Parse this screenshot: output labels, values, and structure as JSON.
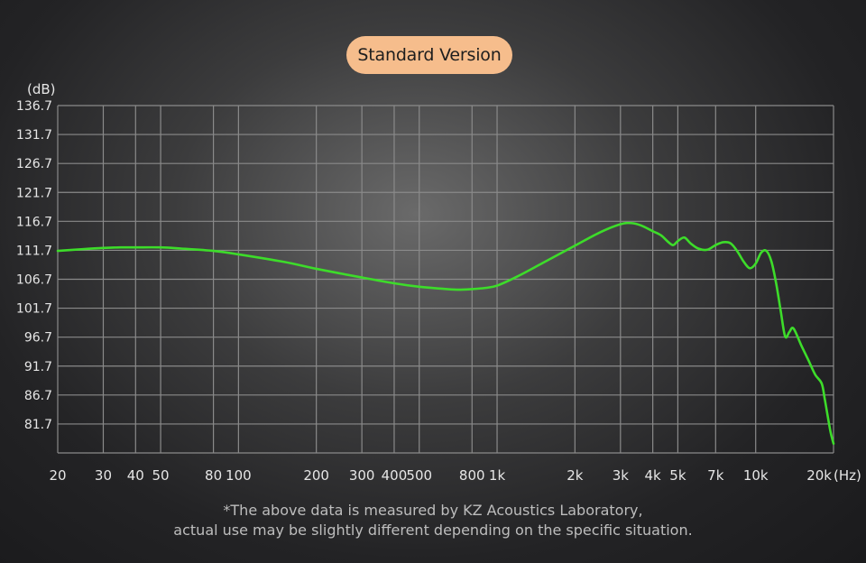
{
  "header": {
    "badge_label": "Standard Version"
  },
  "footnote": {
    "line1": "*The above data is measured by KZ Acoustics Laboratory,",
    "line2": "actual use may be slightly different depending on the specific situation."
  },
  "chart_data": {
    "type": "line",
    "title": "",
    "xlabel": "",
    "ylabel": "",
    "y_unit_label": "(dB)",
    "x_unit_label": "(Hz)",
    "x_scale": "log",
    "xlim": [
      20,
      20000
    ],
    "ylim": [
      76.7,
      136.7
    ],
    "grid": true,
    "y_ticks": [
      136.7,
      131.7,
      126.7,
      121.7,
      116.7,
      111.7,
      106.7,
      101.7,
      96.7,
      91.7,
      86.7,
      81.7
    ],
    "y_tick_labels": [
      "136.7",
      "131.7",
      "126.7",
      "121.7",
      "116.7",
      "111.7",
      "106.7",
      "101.7",
      "96.7",
      "91.7",
      "86.7",
      "81.7"
    ],
    "x_ticks": [
      20,
      30,
      40,
      50,
      80,
      100,
      200,
      300,
      400,
      500,
      800,
      1000,
      2000,
      3000,
      4000,
      5000,
      7000,
      10000,
      20000
    ],
    "x_tick_labels": [
      "20",
      "30",
      "40",
      "50",
      "80",
      "100",
      "200",
      "300",
      "400",
      "500",
      "800",
      "1k",
      "2k",
      "3k",
      "4k",
      "5k",
      "7k",
      "10k",
      "20k"
    ],
    "x_grid": [
      20,
      30,
      40,
      50,
      80,
      100,
      200,
      300,
      400,
      500,
      800,
      1000,
      2000,
      3000,
      4000,
      5000,
      7000,
      10000,
      20000
    ],
    "line_color": "#3ddc2a",
    "series": [
      {
        "x": [
          20,
          25,
          30,
          35,
          40,
          50,
          60,
          80,
          100,
          150,
          200,
          300,
          400,
          500,
          600,
          700,
          800,
          900,
          1000,
          1200,
          1500,
          2000,
          2500,
          3000,
          3300,
          3600,
          4000,
          4300,
          4600,
          4800,
          5000,
          5300,
          5600,
          6000,
          6500,
          7000,
          7500,
          8000,
          8500,
          9000,
          9500,
          10000,
          10500,
          11000,
          11500,
          12000,
          12500,
          13000,
          13500,
          14000,
          15000,
          16000,
          17000,
          18000,
          18500,
          19000,
          19500,
          20000
        ],
        "y": [
          111.6,
          111.9,
          112.1,
          112.2,
          112.2,
          112.2,
          112.0,
          111.6,
          111.0,
          109.7,
          108.5,
          107.0,
          106.0,
          105.4,
          105.1,
          104.9,
          105.0,
          105.2,
          105.6,
          107.2,
          109.5,
          112.5,
          114.8,
          116.2,
          116.4,
          116.0,
          115.0,
          114.3,
          113.1,
          112.6,
          113.3,
          113.9,
          112.9,
          112.0,
          111.8,
          112.6,
          113.1,
          112.9,
          111.5,
          109.7,
          108.6,
          109.4,
          111.3,
          111.6,
          109.8,
          106.0,
          101.2,
          96.8,
          97.6,
          98.2,
          95.3,
          92.7,
          90.2,
          88.7,
          86.0,
          83.0,
          80.2,
          78.3
        ]
      }
    ]
  }
}
